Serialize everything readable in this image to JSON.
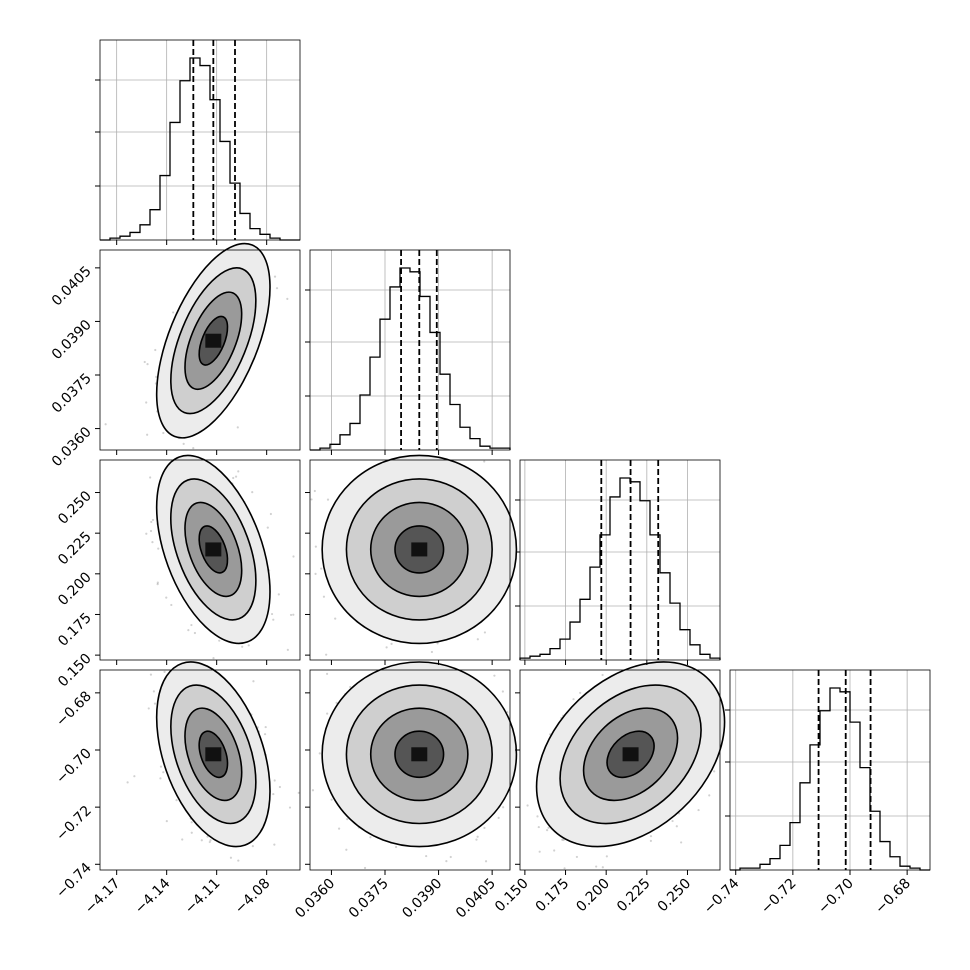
{
  "chart_data": {
    "type": "corner",
    "grid": true,
    "parameters": [
      {
        "ticks": [
          -4.17,
          -4.14,
          -4.11,
          -4.08
        ],
        "tick_labels": [
          "−4.17",
          "−4.14",
          "−4.11",
          "−4.08"
        ],
        "range": [
          -4.18,
          -4.06
        ],
        "quantiles": [
          -4.124,
          -4.112,
          -4.099
        ],
        "histogram": [
          0,
          1,
          2,
          4,
          8,
          16,
          34,
          62,
          84,
          96,
          92,
          74,
          52,
          30,
          14,
          6,
          3,
          1,
          0,
          0
        ],
        "peak": {
          "x": -4.112,
          "y": 0.0385
        }
      },
      {
        "ticks": [
          0.036,
          0.0375,
          0.039,
          0.0405
        ],
        "tick_labels": [
          "0.0360",
          "0.0375",
          "0.0390",
          "0.0405"
        ],
        "range": [
          0.0354,
          0.041
        ],
        "quantiles": [
          0.03795,
          0.03846,
          0.03895
        ],
        "histogram": [
          0,
          1,
          3,
          8,
          14,
          29,
          49,
          69,
          86,
          96,
          94,
          81,
          62,
          40,
          24,
          12,
          6,
          2,
          1,
          1
        ],
        "peak": {
          "x": 0.0385,
          "y": 0.215
        }
      },
      {
        "ticks": [
          0.15,
          0.175,
          0.2,
          0.225,
          0.25
        ],
        "tick_labels": [
          "0.150",
          "0.175",
          "0.200",
          "0.225",
          "0.250"
        ],
        "range": [
          0.147,
          0.27
        ],
        "quantiles": [
          0.197,
          0.215,
          0.232
        ],
        "histogram": [
          1,
          2,
          3,
          6,
          11,
          20,
          32,
          49,
          66,
          86,
          96,
          94,
          84,
          66,
          46,
          30,
          16,
          8,
          3,
          1
        ],
        "peak": {
          "x": 0.213,
          "y": -0.701
        }
      },
      {
        "ticks": [
          -0.74,
          -0.72,
          -0.7,
          -0.68
        ],
        "tick_labels": [
          "−0.74",
          "−0.72",
          "−0.70",
          "−0.68"
        ],
        "range": [
          -0.742,
          -0.672
        ],
        "quantiles": [
          -0.711,
          -0.7015,
          -0.6928
        ],
        "histogram": [
          0,
          1,
          1,
          3,
          6,
          13,
          25,
          46,
          66,
          84,
          96,
          94,
          78,
          54,
          31,
          15,
          7,
          2,
          1,
          0
        ],
        "peak": {
          "x": -0.701,
          "y": -0.701
        }
      }
    ],
    "pairs": [
      {
        "row": 1,
        "col": 0,
        "sx": 0.01,
        "sy": 0.0008,
        "rho": 0.55
      },
      {
        "row": 2,
        "col": 0,
        "sx": 0.01,
        "sy": 0.017,
        "rho": -0.45
      },
      {
        "row": 2,
        "col": 1,
        "sx": 0.0008,
        "sy": 0.017,
        "rho": 0.0
      },
      {
        "row": 3,
        "col": 0,
        "sx": 0.01,
        "sy": 0.0095,
        "rho": -0.4
      },
      {
        "row": 3,
        "col": 1,
        "sx": 0.0008,
        "sy": 0.0095,
        "rho": 0.0
      },
      {
        "row": 3,
        "col": 2,
        "sx": 0.017,
        "sy": 0.0095,
        "rho": 0.35
      }
    ],
    "contour_levels_sigma": [
      0.5,
      1.0,
      1.5,
      2.0
    ],
    "scatter_points_per_panel": 400
  }
}
